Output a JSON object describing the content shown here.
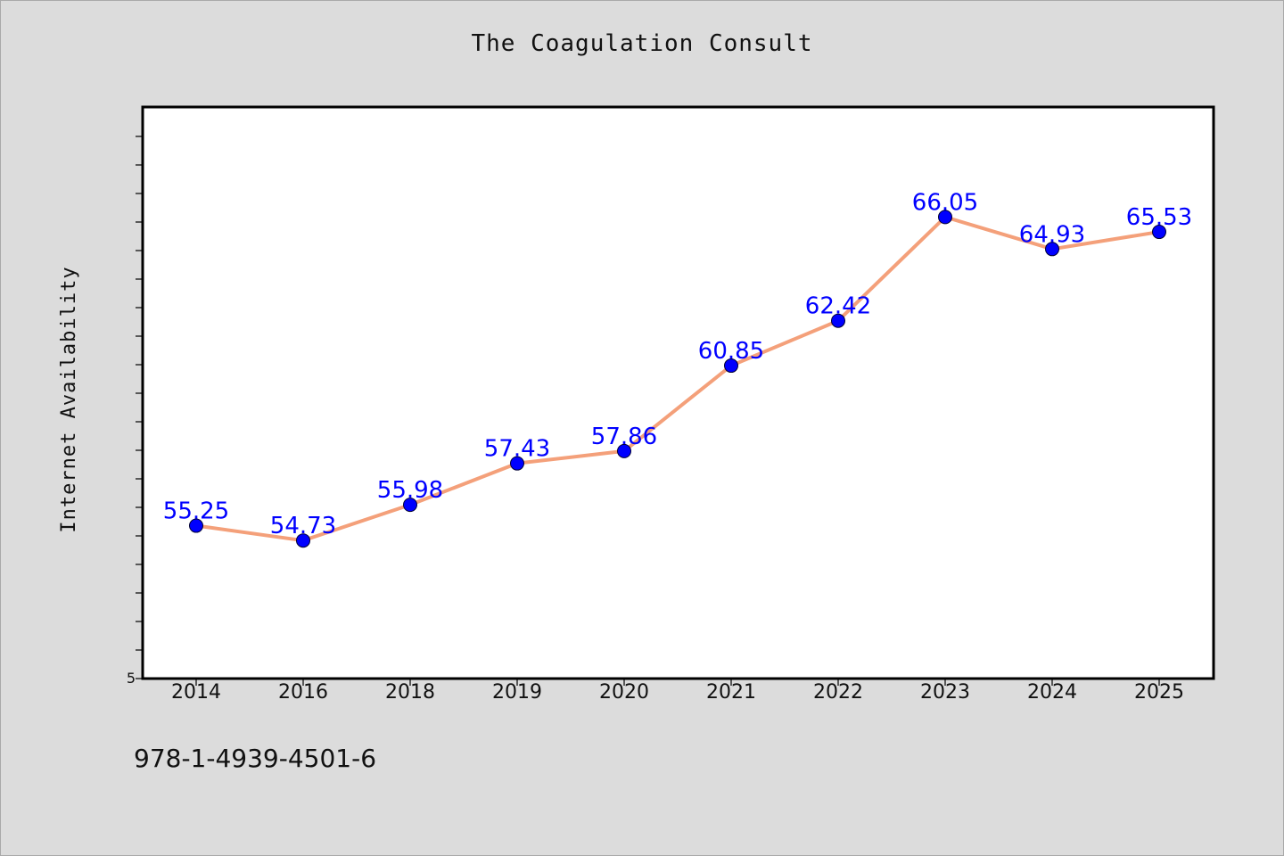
{
  "chart_data": {
    "type": "line",
    "title": "The Coagulation Consult",
    "xlabel": "",
    "ylabel": "Internet Availability",
    "categories": [
      "2014",
      "2016",
      "2018",
      "2019",
      "2020",
      "2021",
      "2022",
      "2023",
      "2024",
      "2025"
    ],
    "series": [
      {
        "values": [
          55.25,
          54.73,
          55.98,
          57.43,
          57.86,
          60.85,
          62.42,
          66.05,
          64.93,
          65.53
        ]
      }
    ],
    "y_tick_labels": [
      "5"
    ],
    "ylim": [
      49.9,
      69.9
    ],
    "grid": false,
    "legend": "none",
    "colors": {
      "line": "#f4a07a",
      "marker": "#0000ff",
      "label": "#0000ff",
      "plot_bg": "#ffffff",
      "page_bg": "#dcdcdc"
    }
  },
  "footer": {
    "code": "978-1-4939-4501-6"
  }
}
